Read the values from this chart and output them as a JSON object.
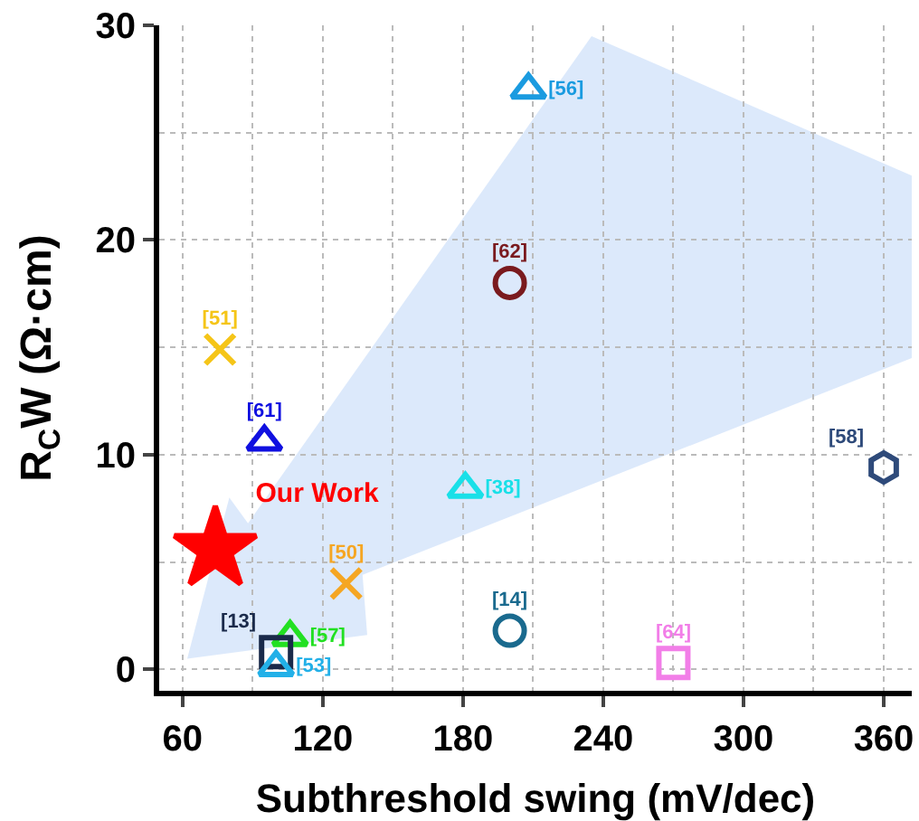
{
  "chart_data": {
    "type": "scatter",
    "xlabel": "Subthreshold swing (mV/dec)",
    "ylabel": "R$_{C}$W (Ω·cm)",
    "xlim": [
      50,
      372
    ],
    "xticks": [
      60,
      120,
      180,
      240,
      300,
      360
    ],
    "ylim": [
      -1,
      30
    ],
    "yticks": [
      0,
      10,
      20,
      30
    ],
    "grid": true,
    "legend": false,
    "series": [
      {
        "name": "[56]",
        "color": "#1a9be0",
        "marker": "triangle",
        "x": [
          208
        ],
        "values": [
          27
        ]
      },
      {
        "name": "[62]",
        "color": "#7a1a1e",
        "marker": "circle",
        "x": [
          200
        ],
        "values": [
          18
        ]
      },
      {
        "name": "[51]",
        "color": "#f5c518",
        "marker": "cross",
        "x": [
          76
        ],
        "values": [
          14.9
        ]
      },
      {
        "name": "[61]",
        "color": "#1010e0",
        "marker": "triangle",
        "x": [
          95
        ],
        "values": [
          10.6
        ]
      },
      {
        "name": "[38]",
        "color": "#19e0e8",
        "marker": "triangle",
        "x": [
          181
        ],
        "values": [
          8.4
        ]
      },
      {
        "name": "[58]",
        "color": "#2e4a7a",
        "marker": "diamond",
        "x": [
          360
        ],
        "values": [
          9.4
        ]
      },
      {
        "name": "Our Work",
        "color": "#ff0000",
        "marker": "star",
        "x": [
          74
        ],
        "values": [
          5.6
        ]
      },
      {
        "name": "[50]",
        "color": "#f5a623",
        "marker": "cross",
        "x": [
          130
        ],
        "values": [
          4
        ]
      },
      {
        "name": "[14]",
        "color": "#1a6a8e",
        "marker": "circle",
        "x": [
          200
        ],
        "values": [
          1.8
        ]
      },
      {
        "name": "[64]",
        "color": "#f27ee8",
        "marker": "square",
        "x": [
          270
        ],
        "values": [
          0.3
        ]
      },
      {
        "name": "[57]",
        "color": "#22e022",
        "marker": "triangle",
        "x": [
          106
        ],
        "values": [
          1.5
        ]
      },
      {
        "name": "[13]",
        "color": "#1a2a4a",
        "marker": "square",
        "x": [
          100
        ],
        "values": [
          0.8
        ]
      },
      {
        "name": "[53]",
        "color": "#22b0e8",
        "marker": "triangle",
        "x": [
          100
        ],
        "values": [
          0.1
        ]
      }
    ]
  }
}
